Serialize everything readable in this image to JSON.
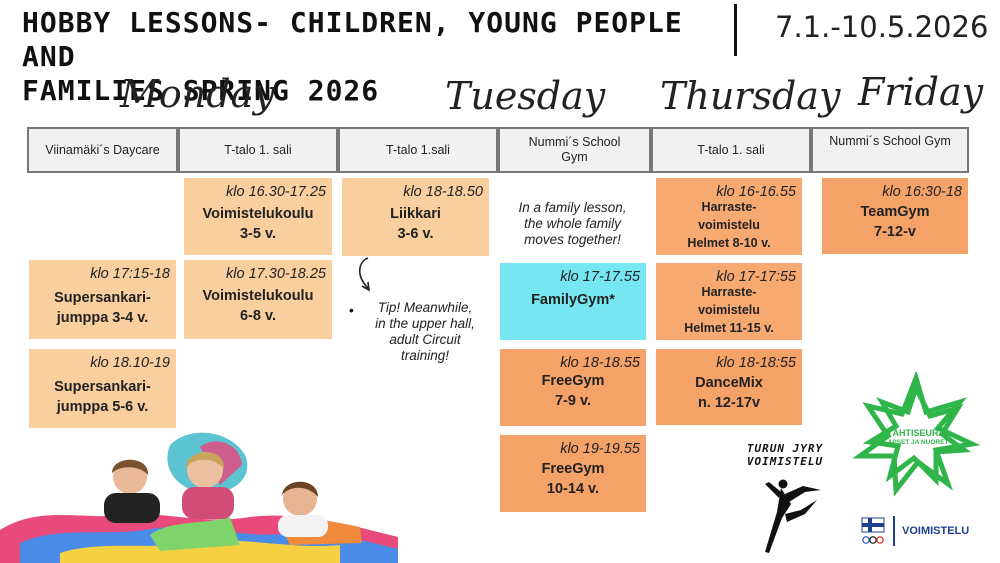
{
  "header": {
    "title_line1": "HOBBY LESSONS- CHILDREN, YOUNG PEOPLE AND",
    "title_line2": "FAMILIES SPRING 2026",
    "dates": "7.1.-10.5.2026"
  },
  "days": {
    "monday": "Monday",
    "tuesday": "Tuesday",
    "thursday": "Thursday",
    "friday": "Friday"
  },
  "venues": {
    "v1": "Viinamäki´s Daycare",
    "v2": "T-talo 1. sali",
    "v3": "T-talo 1.sali",
    "v4": "Nummi´s School Gym",
    "v5": "T-talo 1. sali",
    "v6": "Nummi´s School Gym"
  },
  "sessions": {
    "mon_a": {
      "time": "klo 17:15-18",
      "name1": "Supersankari-",
      "name2": "jumppa 3-4 v."
    },
    "mon_b": {
      "time": "klo 18.10-19",
      "name1": "Supersankari-",
      "name2": "jumppa 5-6 v."
    },
    "mon_c": {
      "time": "klo 16.30-17.25",
      "name1": "Voimistelukoulu",
      "name2": "3-5 v."
    },
    "mon_d": {
      "time": "klo 17.30-18.25",
      "name1": "Voimistelukoulu",
      "name2": "6-8 v."
    },
    "tue_a": {
      "time": "klo 18-18.50",
      "name1": "Liikkari",
      "name2": "3-6 v."
    },
    "tue_b": {
      "time": "klo 17-17.55",
      "name1": "FamilyGym*"
    },
    "tue_c": {
      "time": "klo 18-18.55",
      "name1": "FreeGym",
      "name2": "7-9 v."
    },
    "tue_d": {
      "time": "klo 19-19.55",
      "name1": "FreeGym",
      "name2": "10-14 v."
    },
    "thu_a": {
      "time": "klo 16-16.55",
      "name1": "Harraste-",
      "name2": "voimistelu",
      "name3": "Helmet 8-10 v."
    },
    "thu_b": {
      "time": "klo 17-17:55",
      "name1": "Harraste-",
      "name2": "voimistelu",
      "name3": "Helmet 11-15 v."
    },
    "thu_c": {
      "time": "klo 18-18:55",
      "name1": "DanceMix",
      "name2": "n. 12-17v"
    },
    "fri_a": {
      "time": "klo 16:30-18",
      "name1": "TeamGym",
      "name2": "7-12-v"
    }
  },
  "notes": {
    "family_l1": "In a family lesson,",
    "family_l2": "the whole family",
    "family_l3": "moves together!",
    "tip_l1": "Tip! Meanwhile,",
    "tip_l2": "in the upper hall,",
    "tip_l3": "adult Circuit",
    "tip_l4": "training!"
  },
  "logos": {
    "jyry_l1": "TURUN JYRY",
    "jyry_l2": "VOIMISTELU",
    "tahti_l1": "TÄHTISEURA",
    "tahti_l2": "LAPSET JA NUORET",
    "voimistelu": "VOIMISTELU"
  },
  "colors": {
    "light_orange": "#f9cf9f",
    "dark_orange": "#f5a269",
    "cyan": "#77e6f3",
    "star_green": "#2fb54a"
  }
}
